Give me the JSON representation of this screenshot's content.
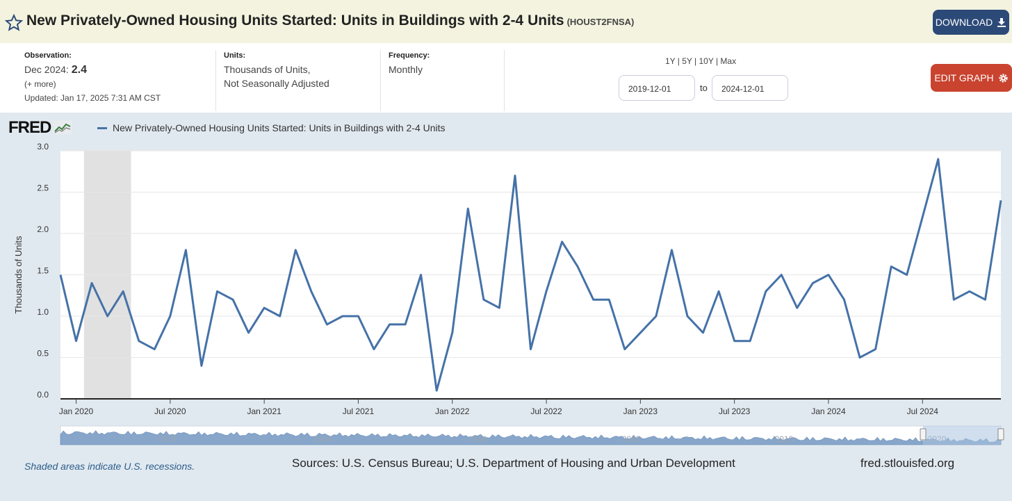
{
  "header": {
    "title": "New Privately-Owned Housing Units Started: Units in Buildings with 2-4 Units",
    "series_code": "(HOUST2FNSA)",
    "download_label": "DOWNLOAD",
    "star_icon": "star-outline-icon",
    "download_icon": "download-icon"
  },
  "meta": {
    "observation_label": "Observation:",
    "observation_date": "Dec 2024:",
    "observation_value": "2.4",
    "more": "(+ more)",
    "updated_label": "Updated:",
    "updated_value": "Jan 17, 2025 7:31 AM CST",
    "units_label": "Units:",
    "units_line1": "Thousands of Units,",
    "units_line2": "Not Seasonally Adjusted",
    "frequency_label": "Frequency:",
    "frequency_value": "Monthly"
  },
  "controls": {
    "ranges": "1Y | 5Y | 10Y | Max",
    "start_date": "2019-12-01",
    "to_label": "to",
    "end_date": "2024-12-01",
    "edit_label": "EDIT GRAPH",
    "edit_icon": "gear-icon"
  },
  "logo": "FRED",
  "footer": {
    "recession_note": "Shaded areas indicate U.S. recessions.",
    "sources": "Sources: U.S. Census Bureau; U.S. Department of Housing and Urban Development",
    "site": "fred.stlouisfed.org"
  },
  "colors": {
    "line": "#4572a7",
    "recession": "#e1e1e1",
    "header_bg": "#f3f3df",
    "download_btn": "#2c4a78",
    "edit_btn": "#c9432f"
  },
  "chart_data": {
    "type": "line",
    "ylabel": "Thousands of Units",
    "ylim": [
      0,
      3.0
    ],
    "yticks": [
      "0.0",
      "0.5",
      "1.0",
      "1.5",
      "2.0",
      "2.5",
      "3.0"
    ],
    "xtick_labels": [
      "Jan 2020",
      "Jul 2020",
      "Jan 2021",
      "Jul 2021",
      "Jan 2022",
      "Jul 2022",
      "Jan 2023",
      "Jul 2023",
      "Jan 2024",
      "Jul 2024"
    ],
    "navigator_labels": [
      "1970",
      "1980",
      "1990",
      "2000",
      "2010",
      "2020"
    ],
    "series": [
      {
        "name": "New Privately-Owned Housing Units Started: Units in Buildings with 2-4 Units",
        "x": [
          "2019-12",
          "2020-01",
          "2020-02",
          "2020-03",
          "2020-04",
          "2020-05",
          "2020-06",
          "2020-07",
          "2020-08",
          "2020-09",
          "2020-10",
          "2020-11",
          "2020-12",
          "2021-01",
          "2021-02",
          "2021-03",
          "2021-04",
          "2021-05",
          "2021-06",
          "2021-07",
          "2021-08",
          "2021-09",
          "2021-10",
          "2021-11",
          "2021-12",
          "2022-01",
          "2022-02",
          "2022-03",
          "2022-04",
          "2022-05",
          "2022-06",
          "2022-07",
          "2022-08",
          "2022-09",
          "2022-10",
          "2022-11",
          "2022-12",
          "2023-01",
          "2023-02",
          "2023-03",
          "2023-04",
          "2023-05",
          "2023-06",
          "2023-07",
          "2023-08",
          "2023-09",
          "2023-10",
          "2023-11",
          "2023-12",
          "2024-01",
          "2024-02",
          "2024-03",
          "2024-04",
          "2024-05",
          "2024-06",
          "2024-07",
          "2024-08",
          "2024-09",
          "2024-10",
          "2024-11",
          "2024-12"
        ],
        "values": [
          1.5,
          0.7,
          1.4,
          1.0,
          1.3,
          0.7,
          0.6,
          1.0,
          1.8,
          0.4,
          1.3,
          1.2,
          0.8,
          1.1,
          1.0,
          1.8,
          1.3,
          0.9,
          1.0,
          1.0,
          0.6,
          0.9,
          0.9,
          1.5,
          0.1,
          0.8,
          2.3,
          1.2,
          1.1,
          2.7,
          0.6,
          1.3,
          1.9,
          1.6,
          1.2,
          1.2,
          0.6,
          0.8,
          1.0,
          1.8,
          1.0,
          0.8,
          1.3,
          0.7,
          0.7,
          1.3,
          1.5,
          1.1,
          1.4,
          1.5,
          1.2,
          0.5,
          0.6,
          1.6,
          1.5,
          2.2,
          2.9,
          1.2,
          1.3,
          1.2,
          2.4
        ]
      }
    ],
    "recessions": [
      [
        "2020-02",
        "2020-04"
      ]
    ],
    "grid": true
  }
}
